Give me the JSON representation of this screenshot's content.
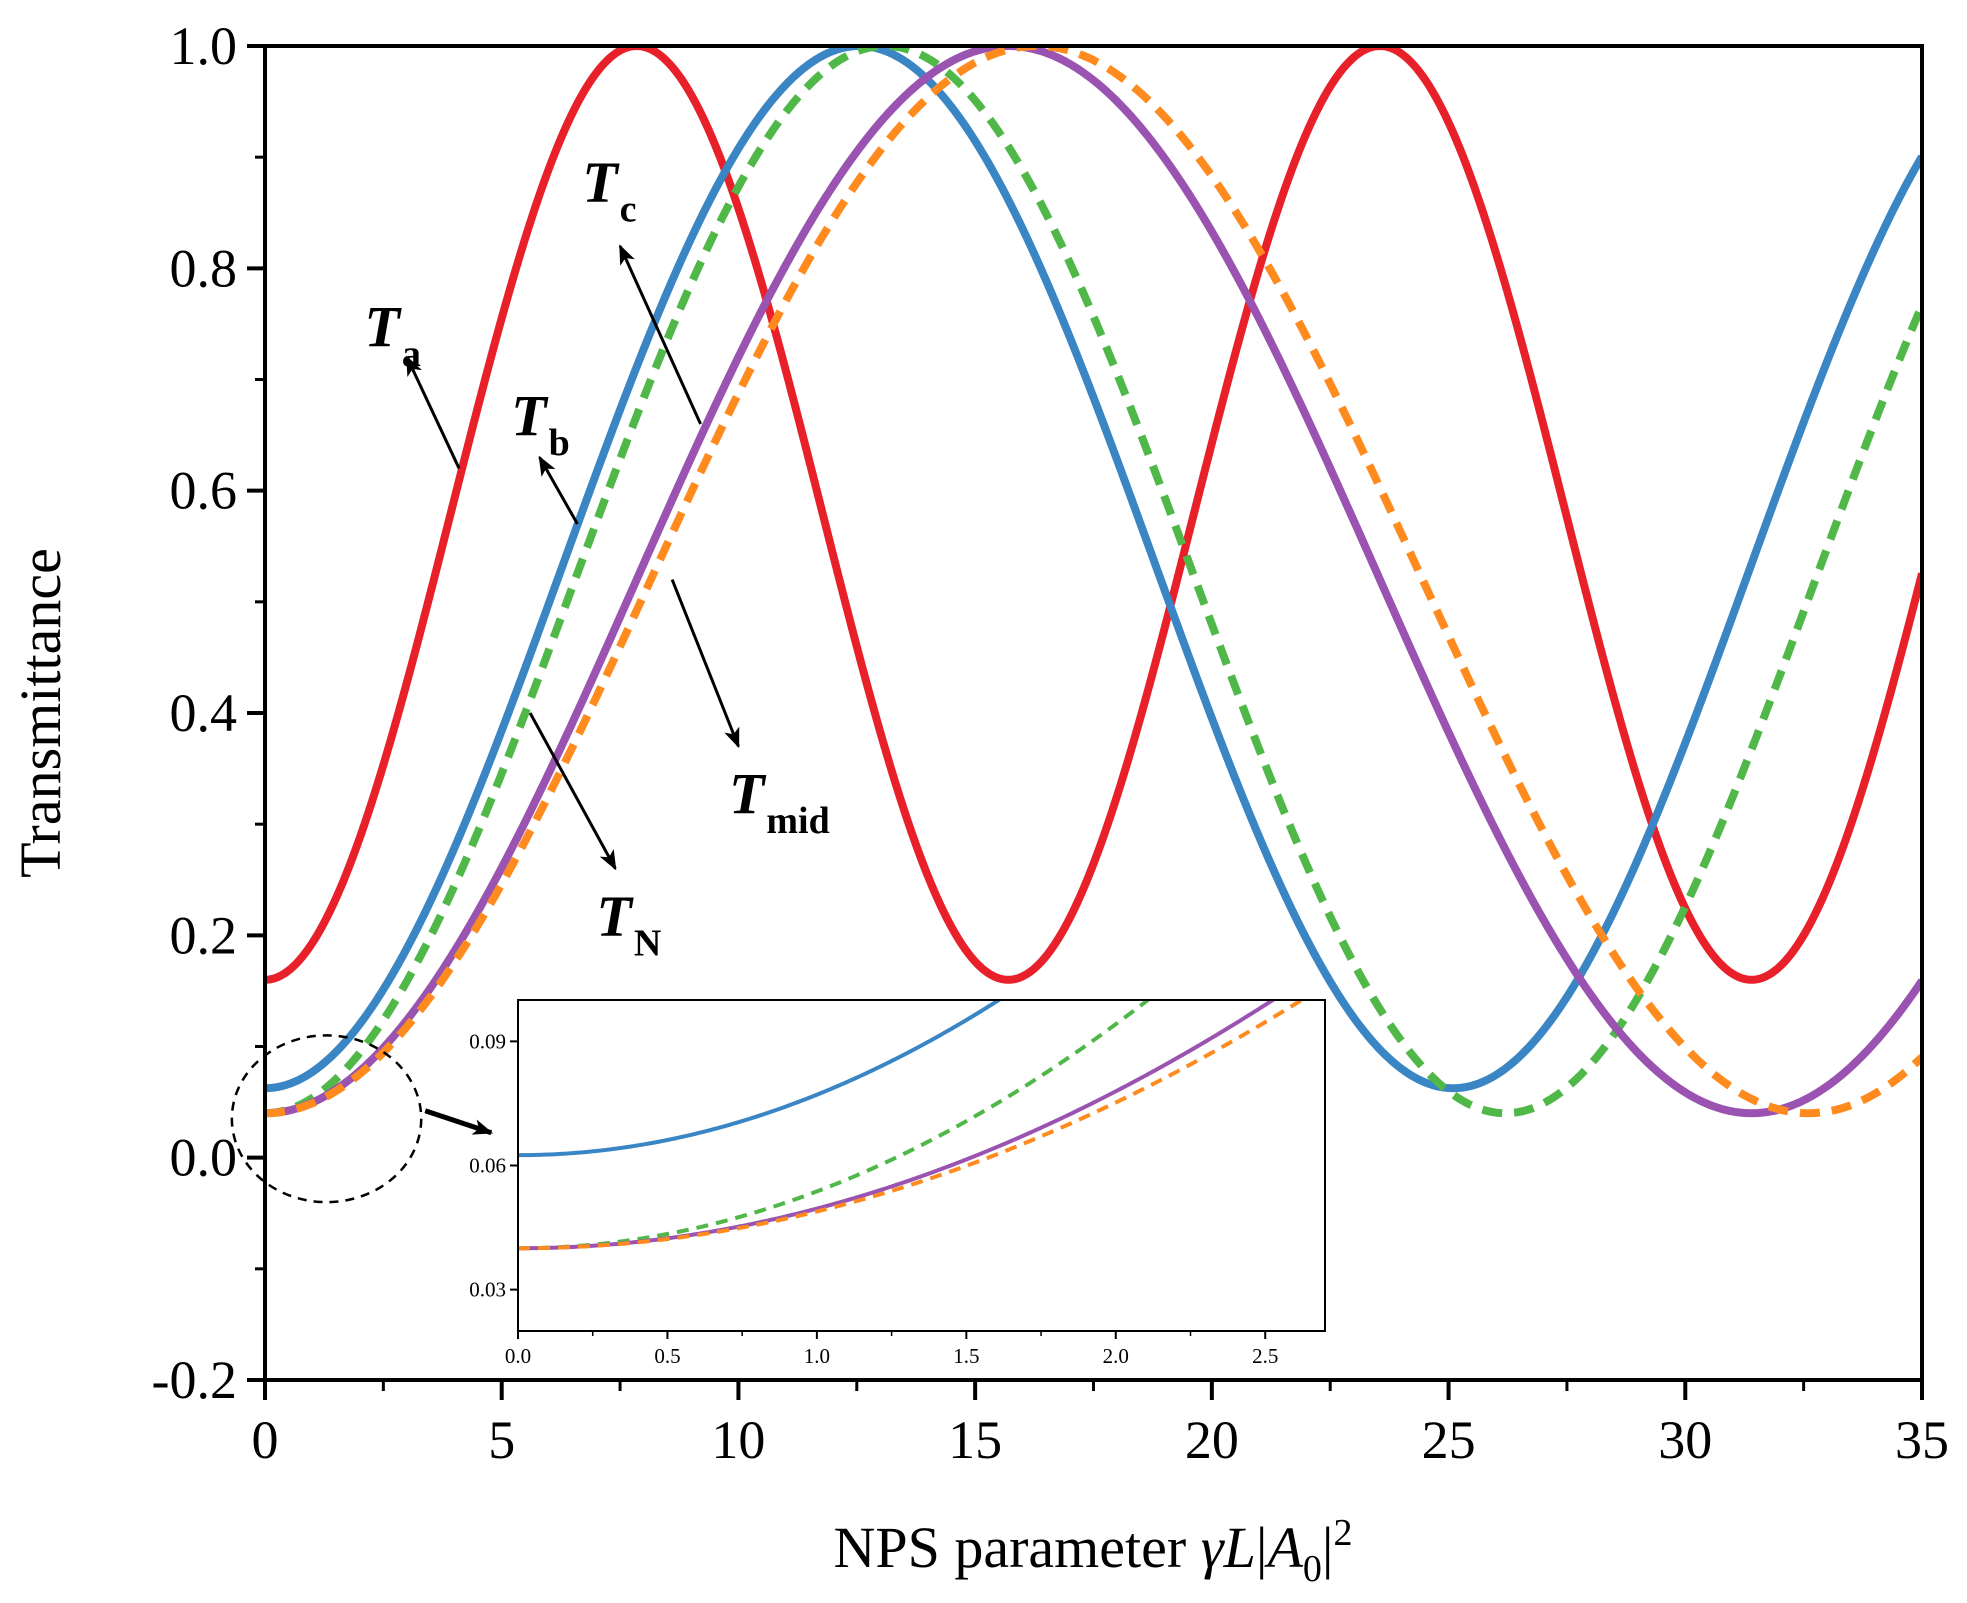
{
  "chart_data": {
    "type": "line",
    "title": "",
    "xlabel": "NPS parameter γL|A0|²",
    "xlabel_parts": {
      "prefix": "NPS parameter ",
      "gamma": "γ",
      "L": "L",
      "bar1": "|",
      "A": "A",
      "sub0": "0",
      "bar2": "|",
      "sup2": "2"
    },
    "ylabel": "Transmittance",
    "xlim": [
      0,
      35
    ],
    "ylim": [
      -0.2,
      1.0
    ],
    "xticks": [
      0,
      5,
      10,
      15,
      20,
      25,
      30,
      35
    ],
    "xtick_labels": [
      "0",
      "5",
      "10",
      "15",
      "20",
      "25",
      "30",
      "35"
    ],
    "yticks": [
      -0.2,
      0.0,
      0.2,
      0.4,
      0.6,
      0.8,
      1.0
    ],
    "ytick_labels": [
      "-0.2",
      "0.0",
      "0.2",
      "0.4",
      "0.6",
      "0.8",
      "1.0"
    ],
    "series": [
      {
        "name": "Ta",
        "color": "#e8202a",
        "dash": "solid",
        "model": {
          "offset": 0.16,
          "amp": 0.84,
          "period": 15.7
        }
      },
      {
        "name": "Tb",
        "color": "#3a86c4",
        "dash": "solid",
        "model": {
          "offset": 0.0625,
          "amp": 0.9375,
          "period": 25.1
        }
      },
      {
        "name": "TN",
        "color": "#50b848",
        "dash": "dashed",
        "model": {
          "offset": 0.04,
          "amp": 0.96,
          "period": 26.2
        }
      },
      {
        "name": "Tc",
        "color": "#9a53b0",
        "dash": "solid",
        "model": {
          "offset": 0.04,
          "amp": 0.96,
          "period": 31.4
        }
      },
      {
        "name": "Tmid",
        "color": "#ff8a1e",
        "dash": "dashed",
        "model": {
          "offset": 0.04,
          "amp": 0.96,
          "period": 32.6
        }
      }
    ],
    "sample_points": {
      "x": [
        0,
        2.5,
        5,
        7.5,
        10,
        12.5,
        15,
        17.5,
        20,
        22.5,
        25,
        27.5,
        30,
        32.5,
        35
      ],
      "Ta": [
        0.16,
        0.37,
        0.75,
        0.99,
        0.86,
        0.49,
        0.18,
        0.24,
        0.62,
        0.97,
        0.94,
        0.63,
        0.24,
        0.2,
        0.52
      ],
      "Tb": [
        0.06,
        0.14,
        0.35,
        0.62,
        0.87,
        1.0,
        0.92,
        0.68,
        0.4,
        0.17,
        0.07,
        0.14,
        0.37,
        0.65,
        0.89
      ],
      "TN": [
        0.04,
        0.12,
        0.31,
        0.57,
        0.84,
        0.99,
        0.96,
        0.79,
        0.53,
        0.27,
        0.08,
        0.06,
        0.22,
        0.49,
        0.76
      ],
      "Tc": [
        0.04,
        0.1,
        0.25,
        0.47,
        0.7,
        0.89,
        0.99,
        0.97,
        0.84,
        0.64,
        0.41,
        0.2,
        0.07,
        0.06,
        0.17
      ],
      "Tmid": [
        0.04,
        0.09,
        0.23,
        0.43,
        0.66,
        0.85,
        0.97,
        0.99,
        0.89,
        0.71,
        0.48,
        0.27,
        0.1,
        0.05,
        0.08
      ]
    },
    "labels": [
      {
        "series": "Ta",
        "main": "T",
        "sub": "a",
        "text_at": [
          2.1,
          0.73
        ],
        "arrow_from": [
          4.1,
          0.62
        ],
        "arrow_to": [
          3.0,
          0.72
        ]
      },
      {
        "series": "Tb",
        "main": "T",
        "sub": "b",
        "text_at": [
          5.2,
          0.65
        ],
        "arrow_from": [
          6.6,
          0.57
        ],
        "arrow_to": [
          5.8,
          0.63
        ]
      },
      {
        "series": "Tc",
        "main": "T",
        "sub": "c",
        "text_at": [
          6.7,
          0.86
        ],
        "arrow_from": [
          9.2,
          0.66
        ],
        "arrow_to": [
          7.5,
          0.82
        ]
      },
      {
        "series": "Tmid",
        "main": "T",
        "sub": "mid",
        "text_at": [
          9.8,
          0.31
        ],
        "arrow_from": [
          8.6,
          0.52
        ],
        "arrow_to": [
          10.0,
          0.37
        ]
      },
      {
        "series": "TN",
        "main": "T",
        "sub": "N",
        "text_at": [
          7.0,
          0.2
        ],
        "arrow_from": [
          5.6,
          0.4
        ],
        "arrow_to": [
          7.4,
          0.26
        ]
      }
    ],
    "zoom_marker": {
      "center": [
        1.3,
        0.035
      ],
      "radius_x": 2.0,
      "radius_y": 0.075
    },
    "inset": {
      "xlim": [
        0,
        2.7
      ],
      "ylim": [
        0.02,
        0.1
      ],
      "xticks": [
        0,
        0.5,
        1.0,
        1.5,
        2.0,
        2.5
      ],
      "xtick_labels": [
        "0.0",
        "0.5",
        "1.0",
        "1.5",
        "2.0",
        "2.5"
      ],
      "yticks": [
        0.03,
        0.06,
        0.09
      ],
      "ytick_labels": [
        "0.03",
        "0.06",
        "0.09"
      ],
      "series_names": [
        "Tb",
        "TN",
        "Tc",
        "Tmid"
      ]
    }
  }
}
